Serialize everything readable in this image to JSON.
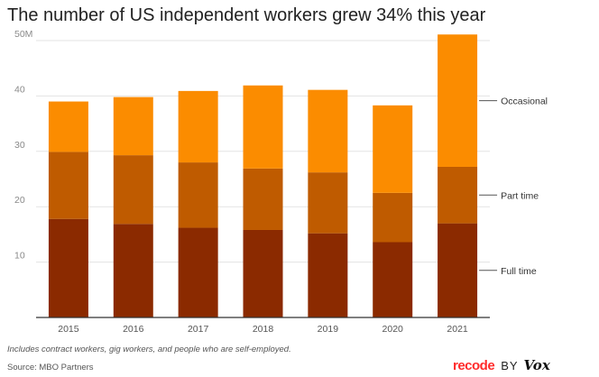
{
  "chart_data": {
    "type": "bar",
    "stacked": true,
    "title": "The number of US independent workers grew 34% this year",
    "xlabel": "",
    "ylabel": "",
    "ylim": [
      0,
      50
    ],
    "yticks": [
      {
        "value": 10,
        "label": "10"
      },
      {
        "value": 20,
        "label": "20"
      },
      {
        "value": 30,
        "label": "30"
      },
      {
        "value": 40,
        "label": "40"
      },
      {
        "value": 50,
        "label": "50M"
      }
    ],
    "grid": true,
    "legend": "right, labels beside last bar",
    "categories": [
      "2015",
      "2016",
      "2017",
      "2018",
      "2019",
      "2020",
      "2021"
    ],
    "series": [
      {
        "name": "Full time",
        "values": [
          17.8,
          16.9,
          16.2,
          15.8,
          15.2,
          13.6,
          17.0
        ],
        "color": "#8b2a00"
      },
      {
        "name": "Part time",
        "values": [
          12.1,
          12.4,
          11.8,
          11.1,
          11.0,
          8.9,
          10.2
        ],
        "color": "#bf5b00"
      },
      {
        "name": "Occasional",
        "values": [
          9.1,
          10.5,
          12.9,
          15.0,
          14.9,
          15.8,
          23.9
        ],
        "color": "#fb8c00"
      }
    ],
    "note": "Includes contract workers, gig workers, and people who are self-employed.",
    "source": "Source: MBO Partners"
  },
  "branding": {
    "recode": "recode",
    "by": "BY",
    "vox": "Vox"
  },
  "colors": {
    "grid": "#e3e3e3",
    "axis": "#333333",
    "leader": "#555555"
  }
}
